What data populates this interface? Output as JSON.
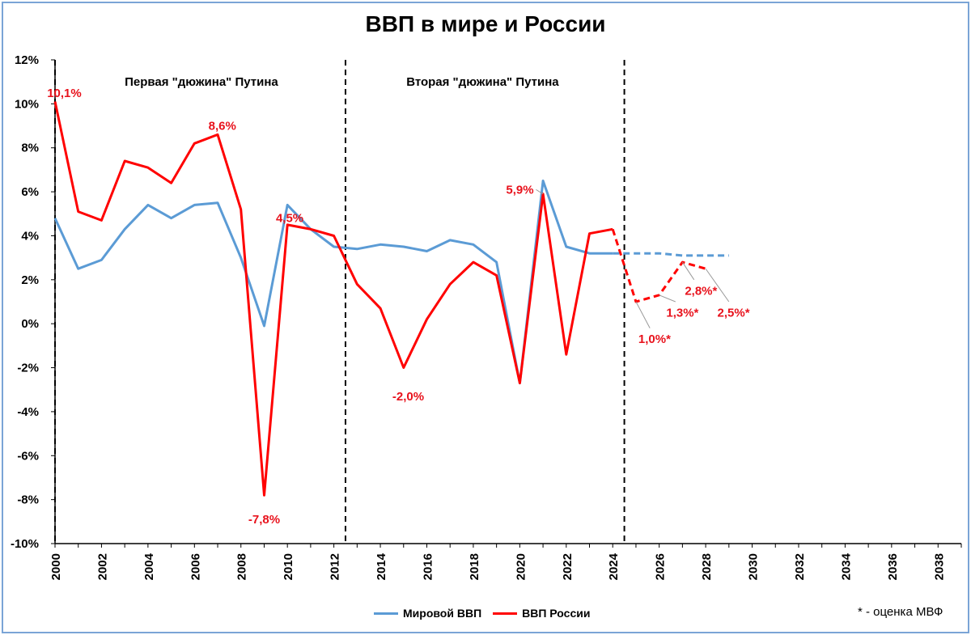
{
  "chart_data": {
    "type": "line",
    "title": "ВВП в мире и России",
    "x": [
      2000,
      2001,
      2002,
      2003,
      2004,
      2005,
      2006,
      2007,
      2008,
      2009,
      2010,
      2011,
      2012,
      2013,
      2014,
      2015,
      2016,
      2017,
      2018,
      2019,
      2020,
      2021,
      2022,
      2023,
      2024,
      2025,
      2026,
      2027,
      2028,
      2029
    ],
    "xlim": [
      2000,
      2039
    ],
    "xticks": [
      "2000",
      "2002",
      "2004",
      "2006",
      "2008",
      "2010",
      "2012",
      "2014",
      "2016",
      "2018",
      "2020",
      "2022",
      "2024",
      "2026",
      "2028",
      "2030",
      "2032",
      "2034",
      "2036",
      "2038"
    ],
    "ylim": [
      -10,
      12
    ],
    "yticks": [
      "12%",
      "10%",
      "8%",
      "6%",
      "4%",
      "2%",
      "0%",
      "-2%",
      "-4%",
      "-6%",
      "-8%",
      "-10%"
    ],
    "series": [
      {
        "name": "Мировой ВВП",
        "color": "#5b9bd5",
        "actual_x": [
          2000,
          2001,
          2002,
          2003,
          2004,
          2005,
          2006,
          2007,
          2008,
          2009,
          2010,
          2011,
          2012,
          2013,
          2014,
          2015,
          2016,
          2017,
          2018,
          2019,
          2020,
          2021,
          2022,
          2023,
          2024
        ],
        "actual": [
          4.8,
          2.5,
          2.9,
          4.3,
          5.4,
          4.8,
          5.4,
          5.5,
          3.0,
          -0.1,
          5.4,
          4.3,
          3.5,
          3.4,
          3.6,
          3.5,
          3.3,
          3.8,
          3.6,
          2.8,
          -2.7,
          6.5,
          3.5,
          3.2,
          3.2
        ],
        "forecast_x": [
          2024,
          2025,
          2026,
          2027,
          2028,
          2029
        ],
        "forecast": [
          3.2,
          3.2,
          3.2,
          3.1,
          3.1,
          3.1
        ]
      },
      {
        "name": "ВВП России",
        "color": "#ff0000",
        "actual_x": [
          2000,
          2001,
          2002,
          2003,
          2004,
          2005,
          2006,
          2007,
          2008,
          2009,
          2010,
          2011,
          2012,
          2013,
          2014,
          2015,
          2016,
          2017,
          2018,
          2019,
          2020,
          2021,
          2022,
          2023,
          2024
        ],
        "actual": [
          10.1,
          5.1,
          4.7,
          7.4,
          7.1,
          6.4,
          8.2,
          8.6,
          5.2,
          -7.8,
          4.5,
          4.3,
          4.0,
          1.8,
          0.7,
          -2.0,
          0.2,
          1.8,
          2.8,
          2.2,
          -2.7,
          5.9,
          -1.4,
          4.1,
          4.3
        ],
        "forecast_x": [
          2024,
          2025,
          2026,
          2027,
          2028
        ],
        "forecast": [
          4.3,
          1.0,
          1.3,
          2.8,
          2.5
        ]
      }
    ],
    "dividers_x": [
      2012.5,
      2024.5
    ],
    "period_labels": [
      {
        "text": "Первая \"дюжина\" Путина",
        "x": 2006.3,
        "y": 11.0
      },
      {
        "text": "Вторая \"дюжина\" Путина",
        "x": 2018.4,
        "y": 11.0
      }
    ],
    "data_labels": [
      {
        "text": "10,1%",
        "x": 2000.4,
        "y": 10.5,
        "anchor": "middle"
      },
      {
        "text": "8,6%",
        "x": 2007.2,
        "y": 9.0,
        "anchor": "middle"
      },
      {
        "text": "4,5%",
        "x": 2010.1,
        "y": 4.8,
        "anchor": "middle"
      },
      {
        "text": "-7,8%",
        "x": 2009.0,
        "y": -8.9,
        "anchor": "middle"
      },
      {
        "text": "-2,0%",
        "x": 2015.2,
        "y": -3.3,
        "anchor": "middle"
      },
      {
        "text": "5,9%",
        "x": 2020.6,
        "y": 6.1,
        "anchor": "end"
      },
      {
        "text": "1,0%*",
        "x": 2025.8,
        "y": -0.7,
        "anchor": "middle"
      },
      {
        "text": "1,3%*",
        "x": 2027.0,
        "y": 0.5,
        "anchor": "middle"
      },
      {
        "text": "2,8%*",
        "x": 2027.8,
        "y": 1.5,
        "anchor": "middle"
      },
      {
        "text": "2,5%*",
        "x": 2029.2,
        "y": 0.5,
        "anchor": "middle"
      }
    ],
    "legend_position": "bottom-center"
  },
  "footnote": "* - оценка МВФ"
}
